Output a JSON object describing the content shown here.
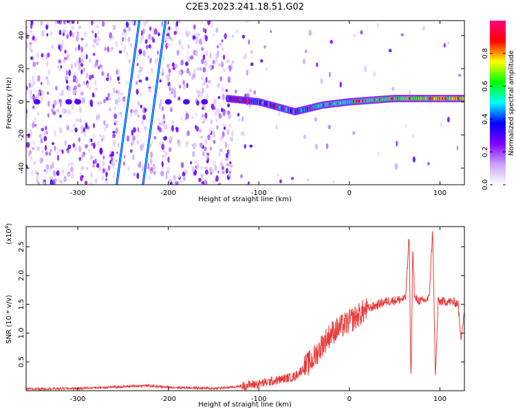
{
  "title": "C2E3.2023.241.18.51.G02",
  "chart_data": [
    {
      "type": "heatmap",
      "xlabel": "Height of straight line (km)",
      "ylabel": "Frequency (Hz)",
      "xlim": [
        -357,
        127
      ],
      "ylim": [
        -50,
        49
      ],
      "xticks": [
        -300,
        -200,
        -100,
        0,
        100
      ],
      "yticks": [
        -40,
        -20,
        0,
        20,
        40
      ],
      "colorbar": {
        "label": "Normalized spectral amplitude",
        "range": [
          0,
          1
        ],
        "ticks": [
          "0.0",
          "0.2",
          "0.4",
          "0.6",
          "0.8"
        ],
        "colors": [
          "#ffffff",
          "#c8a0ff",
          "#8000ff",
          "#0000ff",
          "#00ffff",
          "#00ff00",
          "#ffff00",
          "#ff0000",
          "#ff0080"
        ]
      },
      "features": [
        {
          "name": "diagonal tracks",
          "x_at_bottom": [
            -257,
            -228
          ],
          "x_at_top": [
            -232,
            -203
          ]
        },
        {
          "name": "main trace",
          "x_range": [
            -135,
            127
          ],
          "freq_hz": [
            [
              -135,
              2
            ],
            [
              -100,
              0
            ],
            [
              -60,
              -6
            ],
            [
              -30,
              -2
            ],
            [
              0,
              0
            ],
            [
              50,
              2
            ],
            [
              90,
              2
            ],
            [
              127,
              2
            ]
          ]
        }
      ]
    },
    {
      "type": "line",
      "xlabel": "Height of straight line (km)",
      "ylabel": "SNR (10 * v/v)",
      "y_scale_label": "(x10",
      "y_scale_exponent": "4",
      "xlim": [
        -357,
        127
      ],
      "ylim": [
        0,
        2.85
      ],
      "xticks": [
        -300,
        -200,
        -100,
        0,
        100
      ],
      "yticks": [
        "0.5",
        "1.0",
        "1.5",
        "2.0",
        "2.5"
      ],
      "series": [
        {
          "color": "#e83a3a",
          "x": [
            -357,
            -300,
            -250,
            -225,
            -200,
            -150,
            -130,
            -100,
            -80,
            -60,
            -40,
            -30,
            -20,
            -10,
            0,
            20,
            40,
            55,
            62,
            66,
            68,
            70,
            72,
            80,
            88,
            92,
            95,
            98,
            110,
            120,
            123,
            127
          ],
          "y": [
            0.03,
            0.04,
            0.07,
            0.09,
            0.06,
            0.04,
            0.06,
            0.12,
            0.18,
            0.25,
            0.55,
            0.8,
            1.0,
            1.1,
            1.2,
            1.42,
            1.55,
            1.58,
            1.6,
            2.7,
            0.1,
            2.5,
            1.6,
            1.55,
            1.6,
            2.8,
            0.2,
            1.55,
            1.55,
            1.52,
            0.9,
            1.4
          ]
        }
      ]
    }
  ]
}
